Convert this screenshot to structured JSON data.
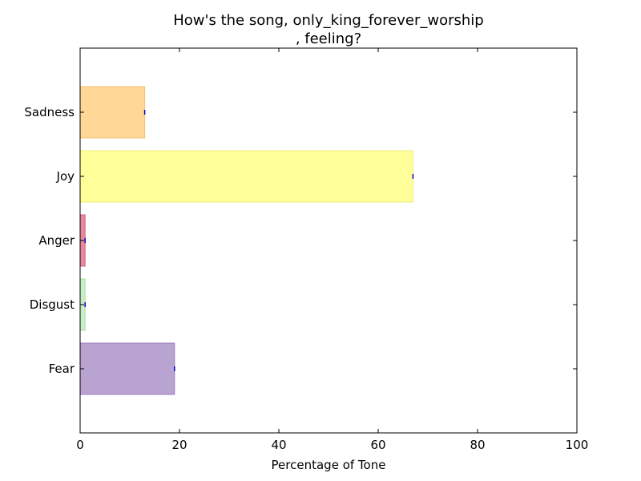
{
  "chart_data": {
    "type": "bar",
    "orientation": "horizontal",
    "title_line1": "How's the song, only_king_forever_worship",
    "title_line2": ", feeling?",
    "xlabel": "Percentage of Tone",
    "ylabel": "",
    "xlim": [
      0,
      100
    ],
    "xticks": [
      "0",
      "20",
      "40",
      "60",
      "80",
      "100"
    ],
    "categories": [
      "Fear",
      "Disgust",
      "Anger",
      "Joy",
      "Sadness"
    ],
    "values": [
      19,
      1,
      1,
      67,
      13
    ],
    "colors": [
      "#b9a3d1",
      "#c9eec3",
      "#e88a9d",
      "#ffff99",
      "#ffd898"
    ],
    "edge_colors": [
      "#9a7fc0",
      "#a9e0a2",
      "#d8607a",
      "#eeee77",
      "#f0c070"
    ],
    "grid": false,
    "legend": "none"
  }
}
